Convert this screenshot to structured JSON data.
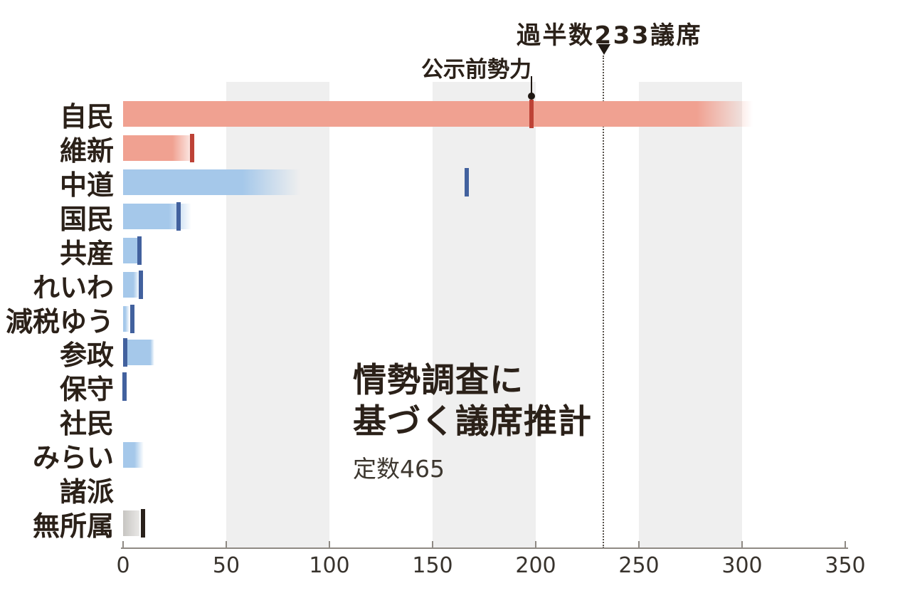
{
  "chart_data": {
    "type": "bar",
    "orientation": "horizontal",
    "title": "情勢調査に基づく議席推計",
    "title_line1": "情勢調査に",
    "title_line2": "基づく議席推計",
    "subtitle": "定数465",
    "total_seats": 465,
    "majority_label": "過半数233議席",
    "majority_value": 233,
    "pre_election_label": "公示前勢力",
    "units": "議席",
    "xlim": [
      0,
      350
    ],
    "x_ticks": [
      0,
      50,
      100,
      150,
      200,
      250,
      300,
      350
    ],
    "shaded_bands": [
      [
        50,
        100
      ],
      [
        150,
        200
      ],
      [
        250,
        300
      ]
    ],
    "rows": [
      {
        "party": "自民",
        "color": "red",
        "projected_min": 278,
        "projected_max": 305,
        "pre_election": 198
      },
      {
        "party": "維新",
        "color": "red",
        "projected_min": 24,
        "projected_max": 36,
        "pre_election": 33.5
      },
      {
        "party": "中道",
        "color": "blue",
        "projected_min": 58,
        "projected_max": 86,
        "pre_election": 166.5
      },
      {
        "party": "国民",
        "color": "blue",
        "projected_min": 22,
        "projected_max": 33,
        "pre_election": 27
      },
      {
        "party": "共産",
        "color": "blue",
        "projected_min": 9,
        "projected_max": 9,
        "pre_election": 8
      },
      {
        "party": "れいわ",
        "color": "blue",
        "projected_min": 5,
        "projected_max": 8,
        "pre_election": 8.5
      },
      {
        "party": "減税ゆう",
        "color": "blue",
        "projected_min": 1,
        "projected_max": 3,
        "pre_election": 4.4
      },
      {
        "party": "参政",
        "color": "blue",
        "projected_min": 13,
        "projected_max": 15,
        "pre_election": 1
      },
      {
        "party": "保守",
        "color": "blue",
        "projected_min": 0,
        "projected_max": 0,
        "pre_election": 0.7
      },
      {
        "party": "社民",
        "color": "blue",
        "projected_min": 0,
        "projected_max": 0,
        "pre_election": null
      },
      {
        "party": "みらい",
        "color": "blue",
        "projected_min": 5.5,
        "projected_max": 10,
        "pre_election": null
      },
      {
        "party": "諸派",
        "color": "blue",
        "projected_min": 0,
        "projected_max": 0,
        "pre_election": null
      },
      {
        "party": "無所属",
        "color": "gray",
        "projected_min": 4,
        "projected_max": 8,
        "pre_election": 9.6
      }
    ],
    "colors": {
      "red_bar": "#f0a191",
      "red_tick": "#bd4236",
      "blue_bar": "#a5c8ea",
      "blue_tick": "#42619e",
      "gray_bar_start": "#c7c5c2",
      "gray_bar_end": "#e9e8e6",
      "gray_tick": "#29211b",
      "band": "#efefef",
      "axis": "#8f8a84",
      "text": "#2b2119",
      "guide": "#56504a"
    }
  }
}
